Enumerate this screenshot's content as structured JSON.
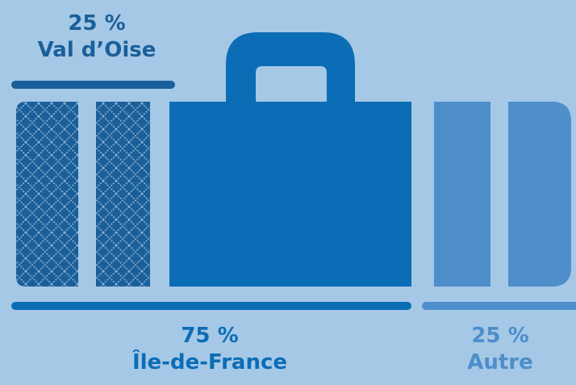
{
  "segments": [
    {
      "id": "val-d-oise",
      "percent_label": "25 %",
      "name": "Val d’Oise",
      "color": "#1a5f9a"
    },
    {
      "id": "ile-de-france",
      "percent_label": "75 %",
      "name": "Île-de-France",
      "color": "#0b6db5"
    },
    {
      "id": "autre",
      "percent_label": "25 %",
      "name": "Autre",
      "color": "#4d8ecb"
    }
  ],
  "colors": {
    "background": "#a5c8e6",
    "pattern_dark": "#1a5f9a",
    "pattern_line": "#87aed2"
  }
}
